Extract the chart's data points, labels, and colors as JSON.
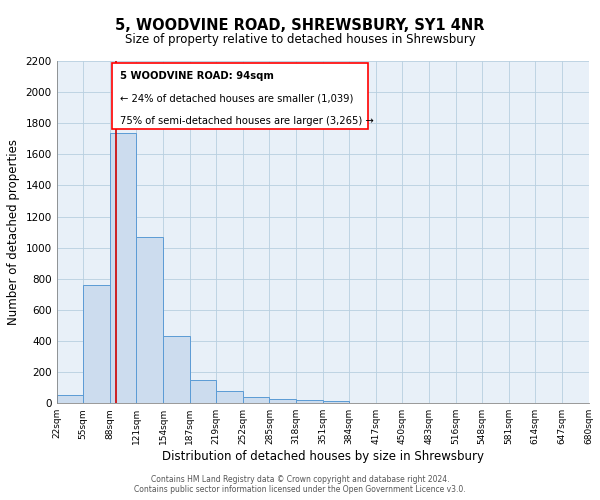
{
  "title": "5, WOODVINE ROAD, SHREWSBURY, SY1 4NR",
  "subtitle": "Size of property relative to detached houses in Shrewsbury",
  "xlabel": "Distribution of detached houses by size in Shrewsbury",
  "ylabel": "Number of detached properties",
  "bar_values": [
    55,
    760,
    1740,
    1070,
    430,
    150,
    80,
    40,
    30,
    20,
    12,
    0,
    0,
    0,
    0,
    0,
    0,
    0,
    0,
    0
  ],
  "bin_labels": [
    "22sqm",
    "55sqm",
    "88sqm",
    "121sqm",
    "154sqm",
    "187sqm",
    "219sqm",
    "252sqm",
    "285sqm",
    "318sqm",
    "351sqm",
    "384sqm",
    "417sqm",
    "450sqm",
    "483sqm",
    "516sqm",
    "548sqm",
    "581sqm",
    "614sqm",
    "647sqm",
    "680sqm"
  ],
  "bar_color": "#ccdcee",
  "bar_edge_color": "#5b9bd5",
  "grid_color": "#b8cfe0",
  "background_color": "#e8f0f8",
  "red_line_bin": 2,
  "ylim": [
    0,
    2200
  ],
  "yticks": [
    0,
    200,
    400,
    600,
    800,
    1000,
    1200,
    1400,
    1600,
    1800,
    2000,
    2200
  ],
  "annotation_line1": "5 WOODVINE ROAD: 94sqm",
  "annotation_line2": "← 24% of detached houses are smaller (1,039)",
  "annotation_line3": "75% of semi-detached houses are larger (3,265) →",
  "footer_line1": "Contains HM Land Registry data © Crown copyright and database right 2024.",
  "footer_line2": "Contains public sector information licensed under the Open Government Licence v3.0."
}
